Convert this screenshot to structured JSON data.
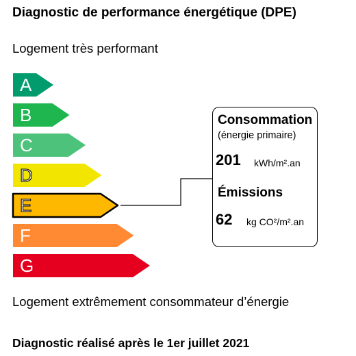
{
  "title": "Diagnostic de performance énergétique (DPE)",
  "top_label": "Logement très performant",
  "bottom_label": "Logement extrêmement consommateur d’énergie",
  "footer": "Diagnostic réalisé après le 1er juillet 2021",
  "current_grade": "E",
  "grades": [
    {
      "letter": "A",
      "color": "#009c6d"
    },
    {
      "letter": "B",
      "color": "#1fb650"
    },
    {
      "letter": "C",
      "color": "#4cc27a"
    },
    {
      "letter": "D",
      "color": "#f2e600"
    },
    {
      "letter": "E",
      "color": "#ffb800"
    },
    {
      "letter": "F",
      "color": "#ff8a33"
    },
    {
      "letter": "G",
      "color": "#e4001e"
    }
  ],
  "info": {
    "consumption_title": "Consommation",
    "consumption_subtitle": "(énergie primaire)",
    "consumption_value": "201",
    "consumption_unit": "kWh/m².an",
    "emissions_title": "Émissions",
    "emissions_value": "62",
    "emissions_unit": "kg CO²/m².an"
  }
}
